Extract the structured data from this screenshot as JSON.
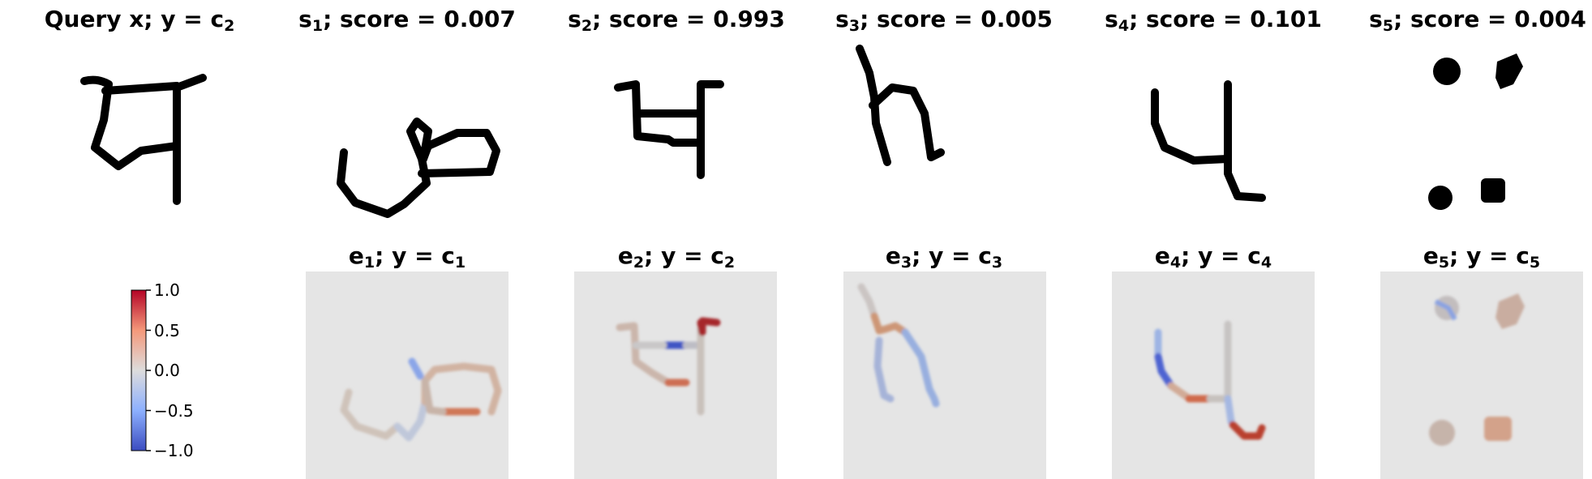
{
  "query": {
    "prefix": "Query x; y = c",
    "sub": "2"
  },
  "samples": [
    {
      "var": "s",
      "idx": "1",
      "score_text": "; score = 0.007",
      "score": 0.007
    },
    {
      "var": "s",
      "idx": "2",
      "score_text": "; score = 0.993",
      "score": 0.993
    },
    {
      "var": "s",
      "idx": "3",
      "score_text": "; score = 0.005",
      "score": 0.005
    },
    {
      "var": "s",
      "idx": "4",
      "score_text": "; score = 0.101",
      "score": 0.101
    },
    {
      "var": "s",
      "idx": "5",
      "score_text": "; score = 0.004",
      "score": 0.004
    }
  ],
  "explanations": [
    {
      "var": "e",
      "idx": "1",
      "label": "; y = c",
      "class_idx": "1"
    },
    {
      "var": "e",
      "idx": "2",
      "label": "; y = c",
      "class_idx": "2"
    },
    {
      "var": "e",
      "idx": "3",
      "label": "; y = c",
      "class_idx": "3"
    },
    {
      "var": "e",
      "idx": "4",
      "label": "; y = c",
      "class_idx": "4"
    },
    {
      "var": "e",
      "idx": "5",
      "label": "; y = c",
      "class_idx": "5"
    }
  ],
  "colorbar": {
    "ticks": [
      "1.0",
      "0.5",
      "0.0",
      "−0.5",
      "−1.0"
    ],
    "range": [
      -1.0,
      1.0
    ],
    "colormap": "coolwarm",
    "colors": {
      "low": "#3b4cc0",
      "mid": "#dddcdc",
      "high": "#b40426"
    }
  },
  "colors": {
    "panel_bg": "#e5e5e5",
    "ink": "#000000"
  }
}
